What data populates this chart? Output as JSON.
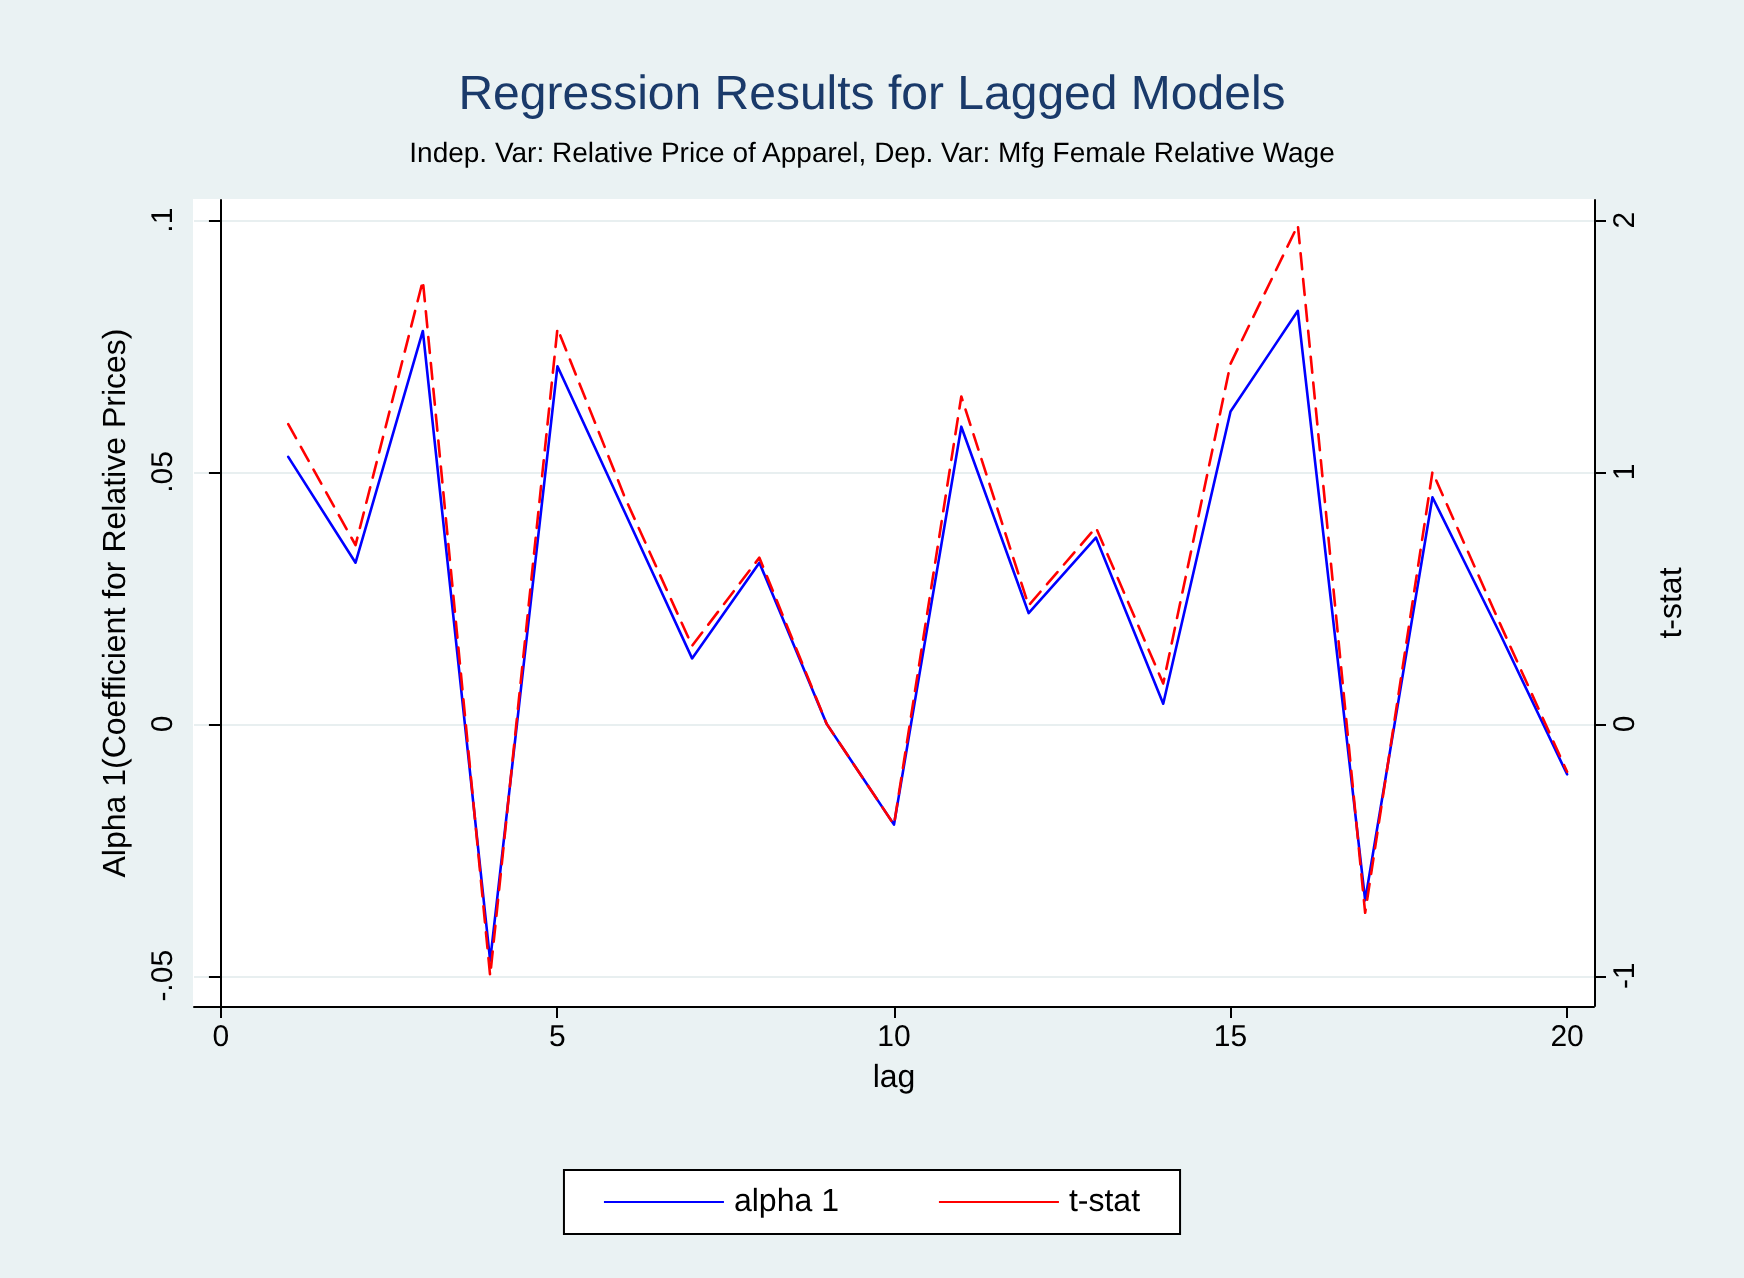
{
  "chart_data": {
    "type": "line",
    "title": "Regression Results for Lagged Models",
    "subtitle": "Indep. Var: Relative Price of Apparel, Dep. Var: Mfg Female Relative Wage",
    "xlabel": "lag",
    "ylabel": "Alpha 1(Coefficient for Relative Prices)",
    "y2label": "t-stat",
    "x": [
      1,
      2,
      3,
      4,
      5,
      6,
      7,
      8,
      9,
      10,
      11,
      12,
      13,
      14,
      15,
      16,
      17,
      18,
      19,
      20
    ],
    "series": [
      {
        "name": "alpha 1",
        "color": "#0000ff",
        "line_style": "solid",
        "values": [
          0.053,
          0.032,
          0.078,
          -0.047,
          0.071,
          0.042,
          0.013,
          0.032,
          0.0,
          -0.02,
          0.059,
          0.022,
          0.037,
          0.004,
          0.062,
          0.082,
          -0.035,
          0.045,
          0.018,
          -0.01
        ]
      },
      {
        "name": "t-stat",
        "color": "#ff0000",
        "line_style": "dashed",
        "axis": "y2",
        "values": [
          1.19,
          0.71,
          1.76,
          -1.0,
          1.57,
          0.9,
          0.31,
          0.66,
          0.0,
          -0.4,
          1.3,
          0.47,
          0.78,
          0.16,
          1.43,
          1.98,
          -0.75,
          1.0,
          0.4,
          -0.19
        ]
      }
    ],
    "xlim": [
      -0.4,
      20.4
    ],
    "xticks": [
      0,
      5,
      10,
      15,
      20
    ],
    "ylim": [
      -0.056,
      0.104
    ],
    "yticks": [
      {
        "value": -0.05,
        "label": "-.05"
      },
      {
        "value": 0,
        "label": "0"
      },
      {
        "value": 0.05,
        "label": ".05"
      },
      {
        "value": 0.1,
        "label": ".1"
      }
    ],
    "y2lim": [
      -1.12,
      2.08
    ],
    "y2ticks": [
      -1,
      0,
      1,
      2
    ],
    "grid": "y",
    "legend": "bottom",
    "marker": "none"
  }
}
